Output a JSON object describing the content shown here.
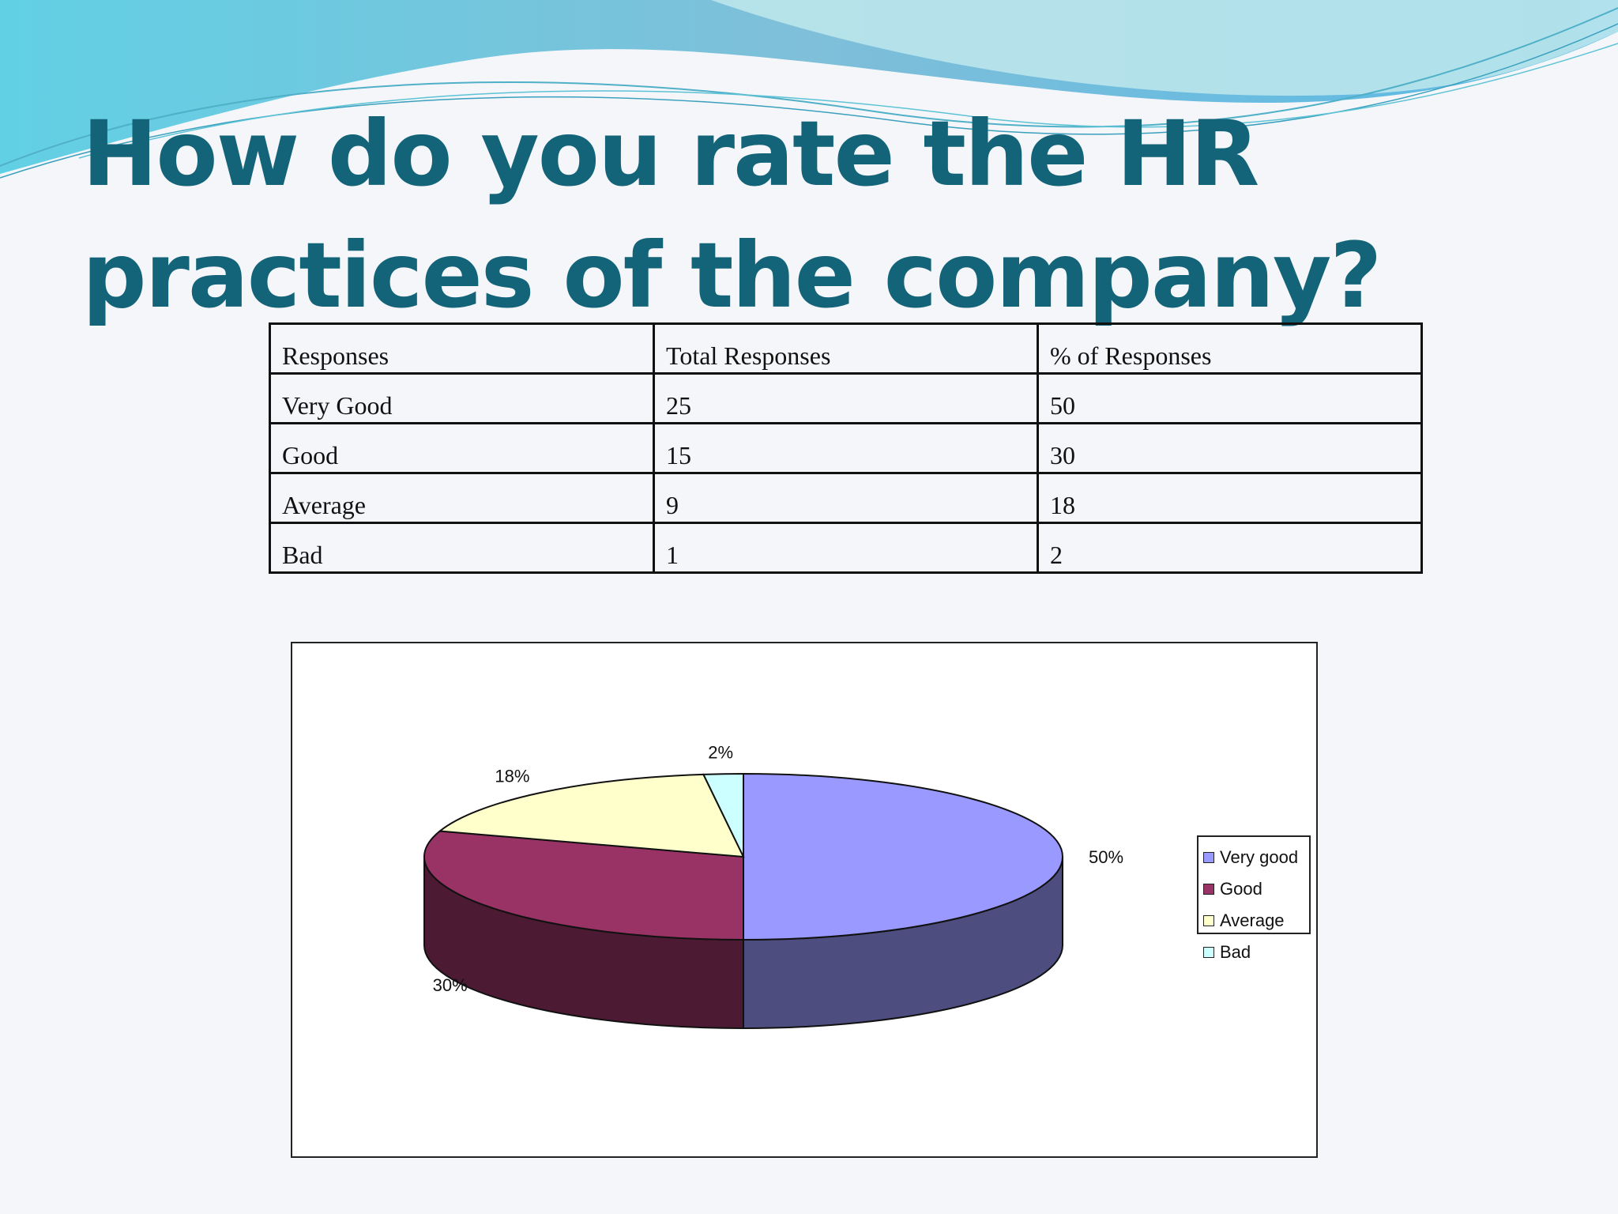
{
  "slide": {
    "title": "How do you rate the HR practices of the company?"
  },
  "table": {
    "headers": [
      "Responses",
      "Total Responses",
      "% of Responses"
    ],
    "rows": [
      [
        "Very Good",
        "25",
        "50"
      ],
      [
        "Good",
        "15",
        "30"
      ],
      [
        "Average",
        "9",
        "18"
      ],
      [
        "Bad",
        "1",
        "2"
      ]
    ]
  },
  "chart_data": {
    "type": "pie",
    "style": "3d",
    "legend_position": "right",
    "slices": [
      {
        "label": "Very good",
        "value": 50,
        "data_label": "50%",
        "color": "#9999ff",
        "side_color": "#4d4d80"
      },
      {
        "label": "Good",
        "value": 30,
        "data_label": "30%",
        "color": "#993366",
        "side_color": "#4d1a33"
      },
      {
        "label": "Average",
        "value": 18,
        "data_label": "18%",
        "color": "#ffffcc",
        "side_color": "#808066"
      },
      {
        "label": "Bad",
        "value": 2,
        "data_label": "2%",
        "color": "#ccffff",
        "side_color": "#668080"
      }
    ]
  },
  "colors": {
    "title": "#136379",
    "wave_dark": "#79c4db",
    "wave_light": "#a9e3ea"
  }
}
